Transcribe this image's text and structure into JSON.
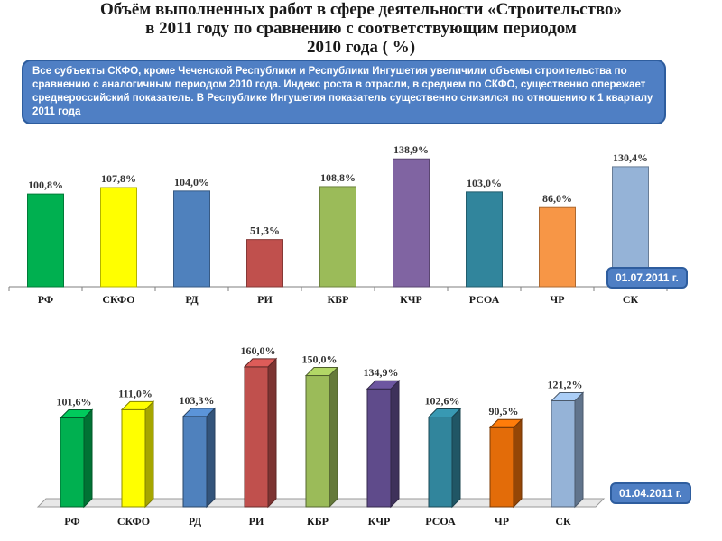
{
  "title": {
    "line1": "Объём выполненных работ в сфере деятельности «Строительство»",
    "line2": "в 2011 году по сравнению с соответствующим периодом",
    "line3": "2010 года   ( %)"
  },
  "note": "Все субъекты СКФО, кроме Чеченской Республики и Республики Ингушетия увеличили объемы строительства по сравнению с аналогичным периодом 2010 года. Индекс роста в отрасли, в среднем по СКФО, существенно опережает среднероссийский показатель. В Республике Ингушетия показатель существенно снизился по отношению к 1 кварталу 2011 года",
  "chart_data": [
    {
      "type": "bar",
      "date_label": "01.07.2011 г.",
      "categories": [
        "РФ",
        "СКФО",
        "РД",
        "РИ",
        "КБР",
        "КЧР",
        "РСОА",
        "ЧР",
        "СК"
      ],
      "values": [
        100.8,
        107.8,
        104.0,
        51.3,
        108.8,
        138.9,
        103.0,
        86.0,
        130.4
      ],
      "value_labels": [
        "100,8%",
        "107,8%",
        "104,0%",
        "51,3%",
        "108,8%",
        "138,9%",
        "103,0%",
        "86,0%",
        "130,4%"
      ],
      "colors": [
        "#00b050",
        "#ffff00",
        "#4f81bd",
        "#c0504d",
        "#9bbb59",
        "#8064a2",
        "#31859c",
        "#f79646",
        "#95b3d7"
      ],
      "ylim": [
        0,
        145
      ]
    },
    {
      "type": "bar",
      "date_label": "01.04.2011 г.",
      "categories": [
        "РФ",
        "СКФО",
        "РД",
        "РИ",
        "КБР",
        "КЧР",
        "РСОА",
        "ЧР",
        "СК"
      ],
      "values": [
        101.6,
        111.0,
        103.3,
        160.0,
        150.0,
        134.9,
        102.6,
        90.5,
        121.2
      ],
      "value_labels": [
        "101,6%",
        "111,0%",
        "103,3%",
        "160,0%",
        "150,0%",
        "134,9%",
        "102,6%",
        "90,5%",
        "121,2%"
      ],
      "colors": [
        "#00b050",
        "#ffff00",
        "#4f81bd",
        "#c0504d",
        "#9bbb59",
        "#5f4b8b",
        "#31859c",
        "#e36c09",
        "#95b3d7"
      ],
      "ylim": [
        0,
        165
      ]
    }
  ]
}
